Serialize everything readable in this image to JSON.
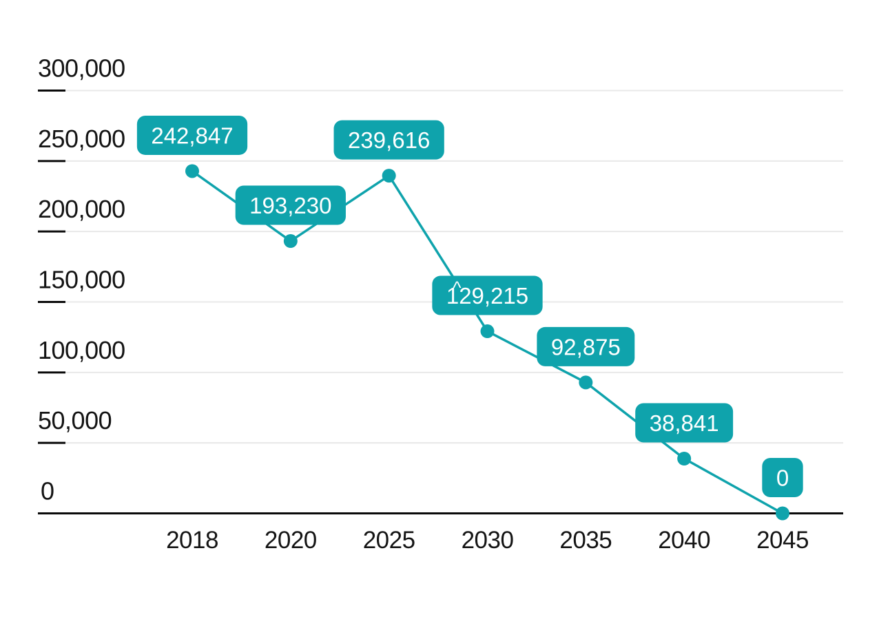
{
  "chart_data": {
    "type": "line",
    "categories": [
      "2018",
      "2020",
      "2025",
      "2030",
      "2035",
      "2040",
      "2045"
    ],
    "values": [
      242847,
      193230,
      239616,
      129215,
      92875,
      38841,
      0
    ],
    "point_labels": [
      "242,847",
      "193,230",
      "239,616",
      "129,215",
      "92,875",
      "38,841",
      "0"
    ],
    "y_tick_values": [
      300000,
      250000,
      200000,
      150000,
      100000,
      50000,
      0
    ],
    "y_tick_labels": [
      "300,000",
      "250,000",
      "200,000",
      "150,000",
      "100,000",
      "50,000",
      "0"
    ],
    "ylim": [
      0,
      300000
    ],
    "grid": "horizontal-only",
    "legend": "none",
    "annotation": {
      "text": "^",
      "point_index": 3
    },
    "colors": {
      "line": "#0fa3ac",
      "marker": "#0fa3ac",
      "value_label_bg": "#0fa3ac",
      "value_label_text": "#ffffff",
      "gridline": "#e8e8e8",
      "tick_mark": "#0a0a0a",
      "axis_line": "#0a0a0a",
      "axis_text": "#141414",
      "background": "#ffffff"
    }
  }
}
